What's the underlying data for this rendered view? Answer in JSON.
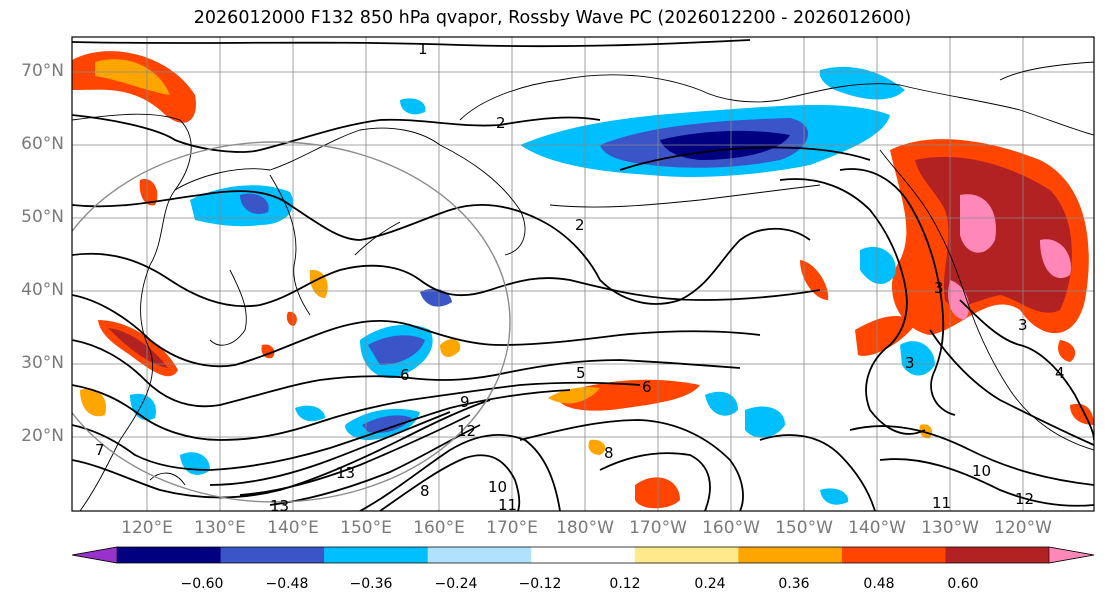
{
  "title": "2026012000 F132 850 hPa qvapor, Rossby Wave PC (2026012200 - 2026012600)",
  "lat_labels": [
    "70°N",
    "60°N",
    "50°N",
    "40°N",
    "30°N",
    "20°N"
  ],
  "lon_labels": [
    "120°E",
    "130°E",
    "140°E",
    "150°E",
    "160°E",
    "170°E",
    "180°W",
    "170°W",
    "160°W",
    "150°W",
    "140°W",
    "130°W",
    "120°W"
  ],
  "colorbar": {
    "colors": [
      "#9932cc",
      "#000080",
      "#3a55c8",
      "#00bfff",
      "#b0e2ff",
      "#ffffff",
      "#ffe98a",
      "#ffa500",
      "#ff4500",
      "#b22222",
      "#ff88b8"
    ],
    "ticks": [
      "−0.60",
      "−0.48",
      "−0.36",
      "−0.24",
      "−0.12",
      "0.12",
      "0.24",
      "0.36",
      "0.48",
      "0.60"
    ]
  },
  "contour_labels": [
    "1",
    "2",
    "2",
    "3",
    "3",
    "3",
    "4",
    "5",
    "6",
    "6",
    "7",
    "8",
    "8",
    "9",
    "10",
    "10",
    "11",
    "11",
    "12",
    "12",
    "13",
    "13"
  ],
  "colors": {
    "grid": "#888888",
    "contour": "#000000",
    "circle": "#8c8c8c",
    "axis_label": "#7a7a7a"
  }
}
